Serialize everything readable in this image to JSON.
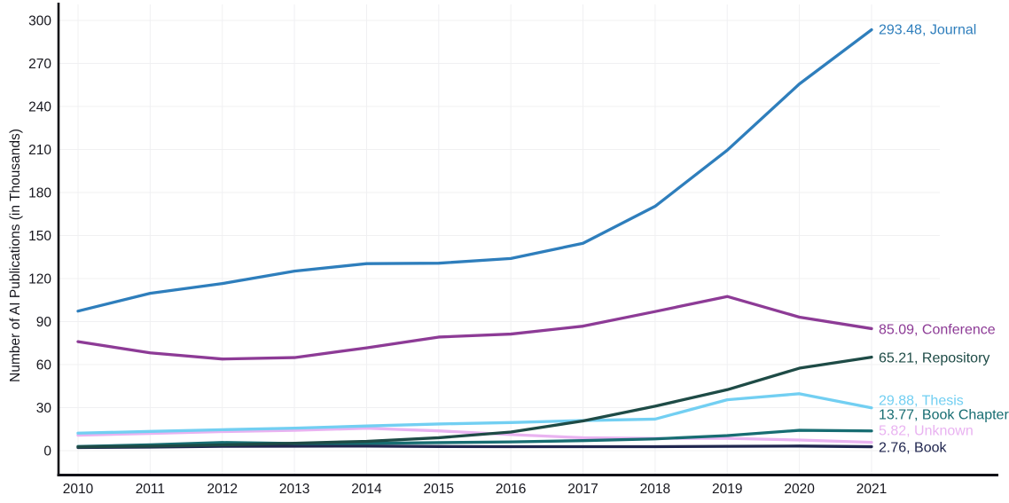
{
  "chart_data": {
    "type": "line",
    "title": "",
    "xlabel": "",
    "ylabel": "Number of AI Publications (in Thousands)",
    "x": [
      2010,
      2011,
      2012,
      2013,
      2014,
      2015,
      2016,
      2017,
      2018,
      2019,
      2020,
      2021
    ],
    "ylim": [
      0,
      300
    ],
    "yticks": [
      0,
      30,
      60,
      90,
      120,
      150,
      180,
      210,
      240,
      270,
      300
    ],
    "grid": true,
    "legend_position": "end-of-line colored labels on right",
    "series": [
      {
        "name": "Journal",
        "color": "#2E7EBC",
        "end_label": "293.48, Journal",
        "label_offset_y": 0,
        "values": [
          97.3,
          109.7,
          116.5,
          125.2,
          130.4,
          130.7,
          134.0,
          144.6,
          170.4,
          209.5,
          255.7,
          293.48
        ]
      },
      {
        "name": "Conference",
        "color": "#8D3B96",
        "end_label": "85.09, Conference",
        "label_offset_y": 1,
        "values": [
          76.0,
          68.2,
          63.9,
          64.9,
          71.7,
          79.2,
          81.3,
          86.8,
          97.0,
          107.5,
          93.1,
          85.09
        ]
      },
      {
        "name": "Repository",
        "color": "#1E4B46",
        "end_label": "65.21, Repository",
        "label_offset_y": 1,
        "values": [
          2.6,
          3.1,
          4.0,
          5.2,
          6.5,
          9.0,
          13.0,
          20.7,
          31.0,
          42.5,
          57.5,
          65.21
        ]
      },
      {
        "name": "Thesis",
        "color": "#72CFF2",
        "end_label": "29.88, Thesis",
        "label_offset_y": -8,
        "values": [
          12.2,
          13.4,
          14.6,
          15.7,
          17.2,
          18.6,
          19.6,
          21.0,
          22.0,
          35.5,
          39.7,
          29.88
        ]
      },
      {
        "name": "Book Chapter",
        "color": "#176D72",
        "end_label": "13.77, Book Chapter",
        "label_offset_y": -18,
        "values": [
          2.9,
          4.1,
          5.7,
          5.0,
          5.1,
          5.6,
          6.1,
          7.0,
          8.2,
          10.5,
          14.2,
          13.77
        ]
      },
      {
        "name": "Unknown",
        "color": "#E9B3F1",
        "end_label": "5.82, Unknown",
        "label_offset_y": -13,
        "values": [
          10.8,
          12.0,
          13.3,
          14.2,
          15.6,
          13.8,
          11.2,
          9.0,
          8.6,
          8.6,
          7.4,
          5.82
        ]
      },
      {
        "name": "Book",
        "color": "#20264F",
        "end_label": "2.76, Book",
        "label_offset_y": 1,
        "values": [
          2.2,
          2.5,
          3.0,
          3.1,
          3.2,
          2.9,
          2.8,
          2.8,
          2.8,
          3.0,
          3.2,
          2.76
        ]
      }
    ],
    "draw_order": [
      "Unknown",
      "Thesis",
      "Book",
      "Book Chapter",
      "Repository",
      "Conference",
      "Journal"
    ],
    "colors": {
      "axis": "#111117",
      "grid": "#F0F0F2",
      "tick_text": "#16161D",
      "background": "#FFFFFF"
    }
  }
}
